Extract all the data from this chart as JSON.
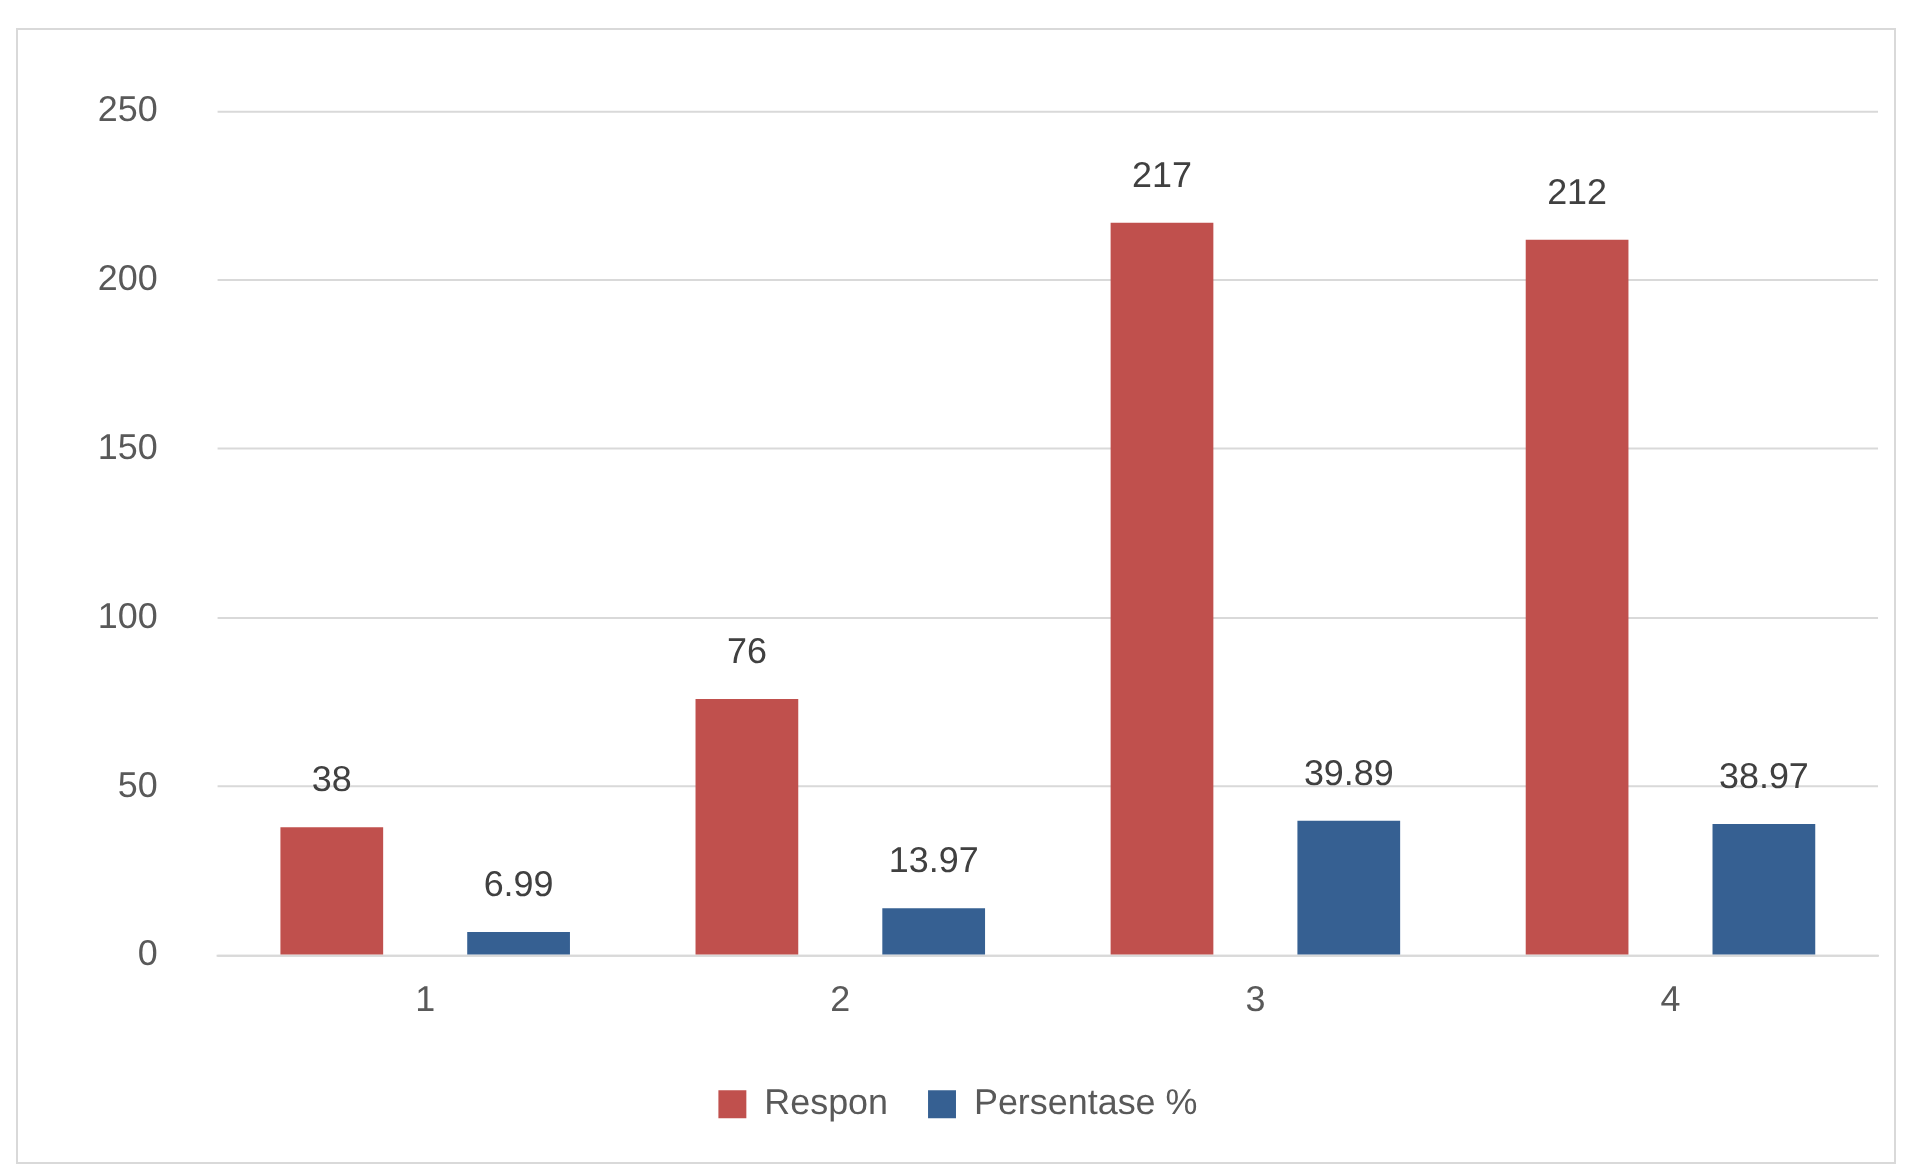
{
  "chart_data": {
    "type": "bar",
    "categories": [
      "1",
      "2",
      "3",
      "4"
    ],
    "series": [
      {
        "name": "Respon",
        "color": "#c0504d",
        "values": [
          38,
          76,
          217,
          212
        ]
      },
      {
        "name": "Persentase %",
        "color": "#366092",
        "values": [
          6.99,
          13.97,
          39.89,
          38.97
        ]
      }
    ],
    "ylim": [
      0,
      250
    ],
    "yticks": [
      0,
      50,
      100,
      150,
      200,
      250
    ],
    "grid": "y",
    "legend": "bottom",
    "data_labels": true
  }
}
